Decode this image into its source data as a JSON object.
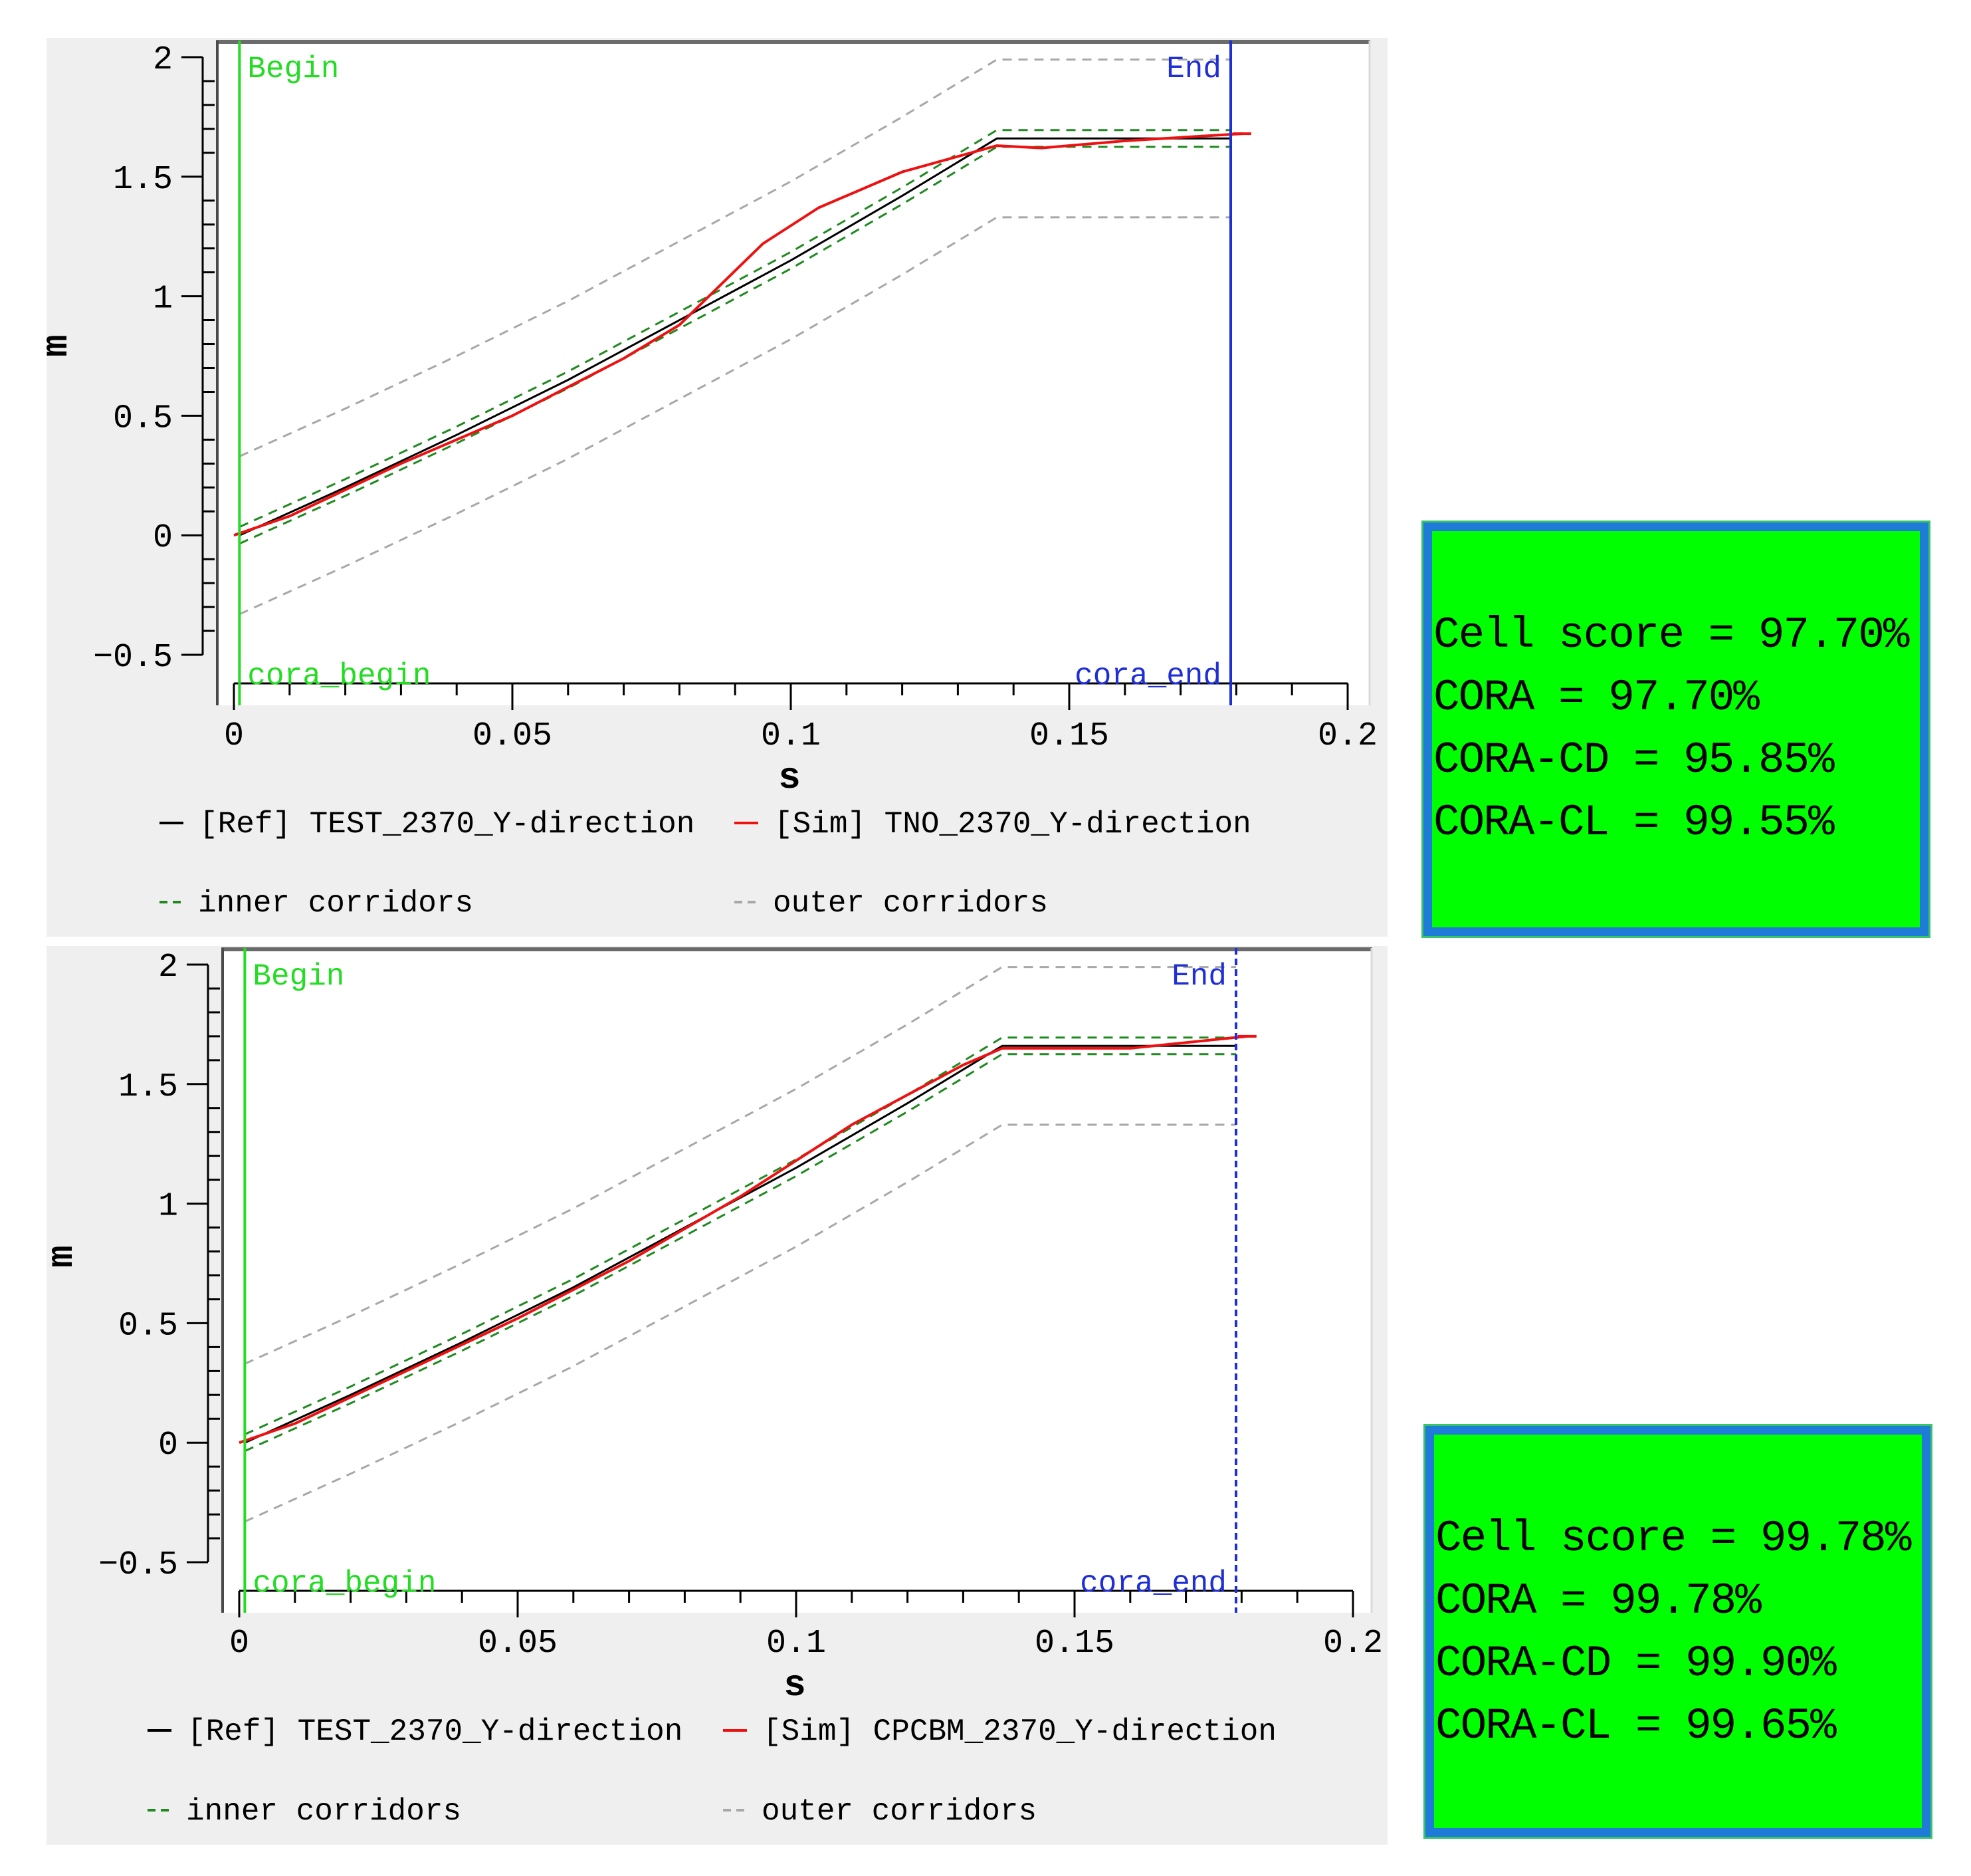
{
  "panels": [
    {
      "chart_data": {
        "type": "line",
        "title": "",
        "xlabel": "s",
        "ylabel": "m",
        "xlim": [
          0,
          0.2
        ],
        "ylim": [
          -0.5,
          2
        ],
        "xticks": [
          0,
          0.05,
          0.1,
          0.15,
          0.2
        ],
        "xtick_labels": [
          "0",
          "0.05",
          "0.1",
          "0.15",
          "0.2"
        ],
        "yticks": [
          2,
          1.5,
          1,
          0.5,
          0,
          -0.5
        ],
        "ytick_labels": [
          "2",
          "1.5",
          "1",
          "0.5",
          "0",
          "−0.5"
        ],
        "markers": [
          {
            "label": "Begin",
            "x": 0.001,
            "color": "#22dd22"
          },
          {
            "label": "End",
            "x": 0.179,
            "color": "#1f2fd8"
          }
        ],
        "marker_bottom_labels": [
          "cora_begin",
          "cora_end"
        ],
        "series": [
          {
            "name": "[Ref]  TEST_2370_Y-direction",
            "role": "ref",
            "color": "#000000",
            "x": [
              0.001,
              0.02,
              0.04,
              0.06,
              0.08,
              0.1,
              0.12,
              0.137,
              0.179
            ],
            "y": [
              0.0,
              0.2,
              0.42,
              0.65,
              0.9,
              1.15,
              1.42,
              1.66,
              1.66
            ]
          },
          {
            "name": "[Sim]  TNO_2370_Y-direction",
            "role": "sim",
            "color": "#ee1111",
            "x": [
              0.0,
              0.01,
              0.03,
              0.05,
              0.07,
              0.08,
              0.095,
              0.105,
              0.12,
              0.137,
              0.145,
              0.16,
              0.181
            ],
            "y": [
              0.0,
              0.08,
              0.3,
              0.5,
              0.74,
              0.88,
              1.22,
              1.37,
              1.52,
              1.63,
              1.62,
              1.65,
              1.68
            ]
          },
          {
            "name": "inner corridors",
            "role": "inner-upper",
            "color": "#1f8a1f",
            "x": [
              0.001,
              0.02,
              0.04,
              0.06,
              0.08,
              0.1,
              0.12,
              0.137,
              0.179
            ],
            "y": [
              0.035,
              0.235,
              0.455,
              0.685,
              0.935,
              1.185,
              1.455,
              1.695,
              1.695
            ]
          },
          {
            "name": "inner corridors",
            "role": "inner-lower",
            "color": "#1f8a1f",
            "x": [
              0.001,
              0.02,
              0.04,
              0.06,
              0.08,
              0.1,
              0.12,
              0.137,
              0.179
            ],
            "y": [
              -0.035,
              0.165,
              0.385,
              0.615,
              0.865,
              1.115,
              1.385,
              1.625,
              1.625
            ]
          },
          {
            "name": "outer corridors",
            "role": "outer-upper",
            "color": "#a8a8a8",
            "x": [
              0.001,
              0.02,
              0.04,
              0.06,
              0.08,
              0.1,
              0.12,
              0.137,
              0.179
            ],
            "y": [
              0.33,
              0.53,
              0.75,
              0.98,
              1.23,
              1.48,
              1.75,
              1.99,
              1.99
            ]
          },
          {
            "name": "outer corridors",
            "role": "outer-lower",
            "color": "#a8a8a8",
            "x": [
              0.001,
              0.02,
              0.04,
              0.06,
              0.08,
              0.1,
              0.12,
              0.137,
              0.179
            ],
            "y": [
              -0.33,
              -0.13,
              0.09,
              0.32,
              0.57,
              0.82,
              1.09,
              1.33,
              1.33
            ]
          }
        ],
        "legend": [
          {
            "text": "[Ref]  TEST_2370_Y-direction",
            "style": "solid",
            "color": "#000000"
          },
          {
            "text": "[Sim]  TNO_2370_Y-direction",
            "style": "solid",
            "color": "#ee1111"
          },
          {
            "text": "inner corridors",
            "style": "dashed",
            "color": "#1f8a1f"
          },
          {
            "text": "outer corridors",
            "style": "dashed",
            "color": "#a8a8a8"
          }
        ]
      },
      "scores": [
        "Cell score = 97.70%",
        "CORA = 97.70%",
        "CORA-CD = 95.85%",
        "CORA-CL = 99.55%"
      ]
    },
    {
      "chart_data": {
        "type": "line",
        "title": "",
        "xlabel": "s",
        "ylabel": "m",
        "xlim": [
          0,
          0.2
        ],
        "ylim": [
          -0.5,
          2
        ],
        "xticks": [
          0,
          0.05,
          0.1,
          0.15,
          0.2
        ],
        "xtick_labels": [
          "0",
          "0.05",
          "0.1",
          "0.15",
          "0.2"
        ],
        "yticks": [
          2,
          1.5,
          1,
          0.5,
          0,
          -0.5
        ],
        "ytick_labels": [
          "2",
          "1.5",
          "1",
          "0.5",
          "0",
          "−0.5"
        ],
        "markers": [
          {
            "label": "Begin",
            "x": 0.001,
            "color": "#22dd22"
          },
          {
            "label": "End",
            "x": 0.179,
            "color": "#1f2fd8",
            "dashed": true
          }
        ],
        "marker_bottom_labels": [
          "cora_begin",
          "cora_end"
        ],
        "series": [
          {
            "name": "[Ref]  TEST_2370_Y-direction",
            "role": "ref",
            "color": "#000000",
            "x": [
              0.001,
              0.02,
              0.04,
              0.06,
              0.08,
              0.1,
              0.12,
              0.137,
              0.179
            ],
            "y": [
              0.0,
              0.2,
              0.42,
              0.65,
              0.9,
              1.15,
              1.42,
              1.66,
              1.66
            ]
          },
          {
            "name": "[Sim]  CPCBM_2370_Y-direction",
            "role": "sim",
            "color": "#ee1111",
            "x": [
              0.0,
              0.01,
              0.03,
              0.05,
              0.07,
              0.09,
              0.11,
              0.13,
              0.137,
              0.16,
              0.181
            ],
            "y": [
              0.0,
              0.08,
              0.3,
              0.52,
              0.76,
              1.03,
              1.33,
              1.58,
              1.65,
              1.65,
              1.7
            ]
          },
          {
            "name": "inner corridors",
            "role": "inner-upper",
            "color": "#1f8a1f",
            "x": [
              0.001,
              0.02,
              0.04,
              0.06,
              0.08,
              0.1,
              0.12,
              0.137,
              0.179
            ],
            "y": [
              0.035,
              0.235,
              0.455,
              0.685,
              0.935,
              1.185,
              1.455,
              1.695,
              1.695
            ]
          },
          {
            "name": "inner corridors",
            "role": "inner-lower",
            "color": "#1f8a1f",
            "x": [
              0.001,
              0.02,
              0.04,
              0.06,
              0.08,
              0.1,
              0.12,
              0.137,
              0.179
            ],
            "y": [
              -0.035,
              0.165,
              0.385,
              0.615,
              0.865,
              1.115,
              1.385,
              1.625,
              1.625
            ]
          },
          {
            "name": "outer corridors",
            "role": "outer-upper",
            "color": "#a8a8a8",
            "x": [
              0.001,
              0.02,
              0.04,
              0.06,
              0.08,
              0.1,
              0.12,
              0.137,
              0.179
            ],
            "y": [
              0.33,
              0.53,
              0.75,
              0.98,
              1.23,
              1.48,
              1.75,
              1.99,
              1.99
            ]
          },
          {
            "name": "outer corridors",
            "role": "outer-lower",
            "color": "#a8a8a8",
            "x": [
              0.001,
              0.02,
              0.04,
              0.06,
              0.08,
              0.1,
              0.12,
              0.137,
              0.179
            ],
            "y": [
              -0.33,
              -0.13,
              0.09,
              0.32,
              0.57,
              0.82,
              1.09,
              1.33,
              1.33
            ]
          }
        ],
        "legend": [
          {
            "text": "[Ref]  TEST_2370_Y-direction",
            "style": "solid",
            "color": "#000000"
          },
          {
            "text": "[Sim]  CPCBM_2370_Y-direction",
            "style": "solid",
            "color": "#ee1111"
          },
          {
            "text": "inner corridors",
            "style": "dashed",
            "color": "#1f8a1f"
          },
          {
            "text": "outer corridors",
            "style": "dashed",
            "color": "#a8a8a8"
          }
        ]
      },
      "scores": [
        "Cell score = 99.78%",
        "CORA = 99.78%",
        "CORA-CD = 99.90%",
        "CORA-CL = 99.65%"
      ]
    }
  ]
}
